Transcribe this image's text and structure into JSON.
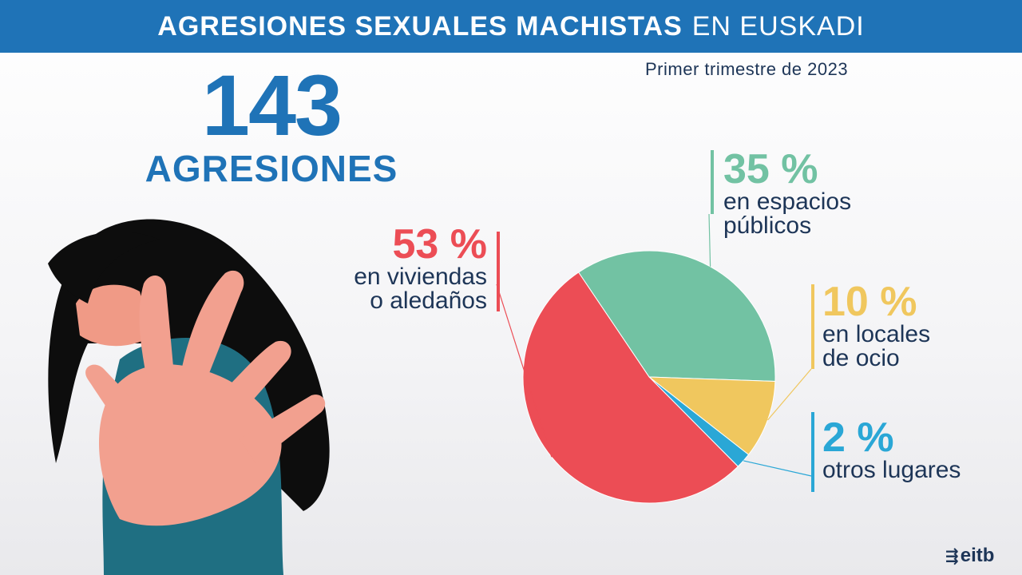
{
  "header": {
    "title_bold": "AGRESIONES SEXUALES MACHISTAS",
    "title_regular": "EN EUSKADI"
  },
  "subtitle": "Primer trimestre de 2023",
  "total": {
    "number": "143",
    "label": "AGRESIONES"
  },
  "chart_data": {
    "type": "pie",
    "title": "Agresiones sexuales machistas en Euskadi — Primer trimestre de 2023",
    "slices": [
      {
        "label": "en espacios públicos",
        "value": 35,
        "pct_label": "35 %",
        "desc_lines": [
          "en espacios",
          "públicos"
        ],
        "color": "#72c2a3"
      },
      {
        "label": "en locales de ocio",
        "value": 10,
        "pct_label": "10 %",
        "desc_lines": [
          "en locales",
          "de ocio"
        ],
        "color": "#f0c75e"
      },
      {
        "label": "otros lugares",
        "value": 2,
        "pct_label": "2 %",
        "desc_lines": [
          "otros lugares"
        ],
        "color": "#2aa7d6"
      },
      {
        "label": "en viviendas o aledaños",
        "value": 53,
        "pct_label": "53 %",
        "desc_lines": [
          "en viviendas",
          "o aledaños"
        ],
        "color": "#ec4d55"
      }
    ]
  },
  "colors": {
    "brand_blue": "#1f73b7",
    "text_dark": "#1d3557"
  },
  "logo": {
    "text": "eitb",
    "icon": "eitb-logo-icon"
  }
}
